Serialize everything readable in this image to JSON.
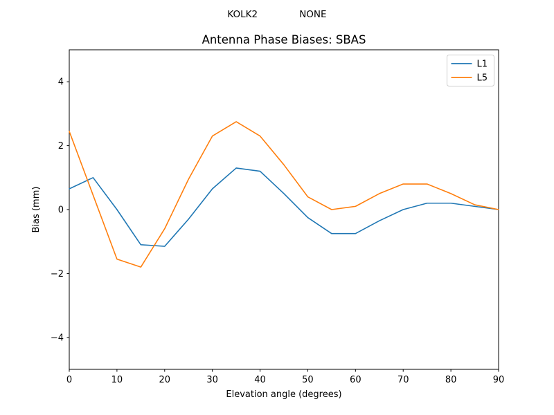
{
  "figure": {
    "background": "#ffffff",
    "suptitle": "KOLK2              NONE"
  },
  "chart_data": {
    "type": "line",
    "title": "Antenna Phase Biases: SBAS",
    "xlabel": "Elevation angle (degrees)",
    "ylabel": "Bias (mm)",
    "xlim": [
      0,
      90
    ],
    "ylim": [
      -5,
      5
    ],
    "xticks": [
      0,
      10,
      20,
      30,
      40,
      50,
      60,
      70,
      80,
      90
    ],
    "yticks": [
      -4,
      -2,
      0,
      2,
      4
    ],
    "grid": false,
    "legend": {
      "position": "upper right"
    },
    "x": [
      0,
      5,
      10,
      15,
      20,
      25,
      30,
      35,
      40,
      45,
      50,
      55,
      60,
      65,
      70,
      75,
      80,
      85,
      90
    ],
    "series": [
      {
        "name": "L1",
        "color": "#1f77b4",
        "values": [
          0.65,
          1.0,
          0.0,
          -1.1,
          -1.15,
          -0.3,
          0.65,
          1.3,
          1.2,
          0.5,
          -0.25,
          -0.75,
          -0.75,
          -0.35,
          0.0,
          0.2,
          0.2,
          0.1,
          0.0
        ]
      },
      {
        "name": "L5",
        "color": "#ff7f0e",
        "values": [
          2.45,
          0.45,
          -1.55,
          -1.8,
          -0.6,
          0.95,
          2.3,
          2.75,
          2.3,
          1.4,
          0.4,
          0.0,
          0.1,
          0.5,
          0.8,
          0.8,
          0.5,
          0.15,
          0.0
        ]
      }
    ],
    "axis_color": "#000000",
    "legend_border_color": "#cccccc"
  }
}
